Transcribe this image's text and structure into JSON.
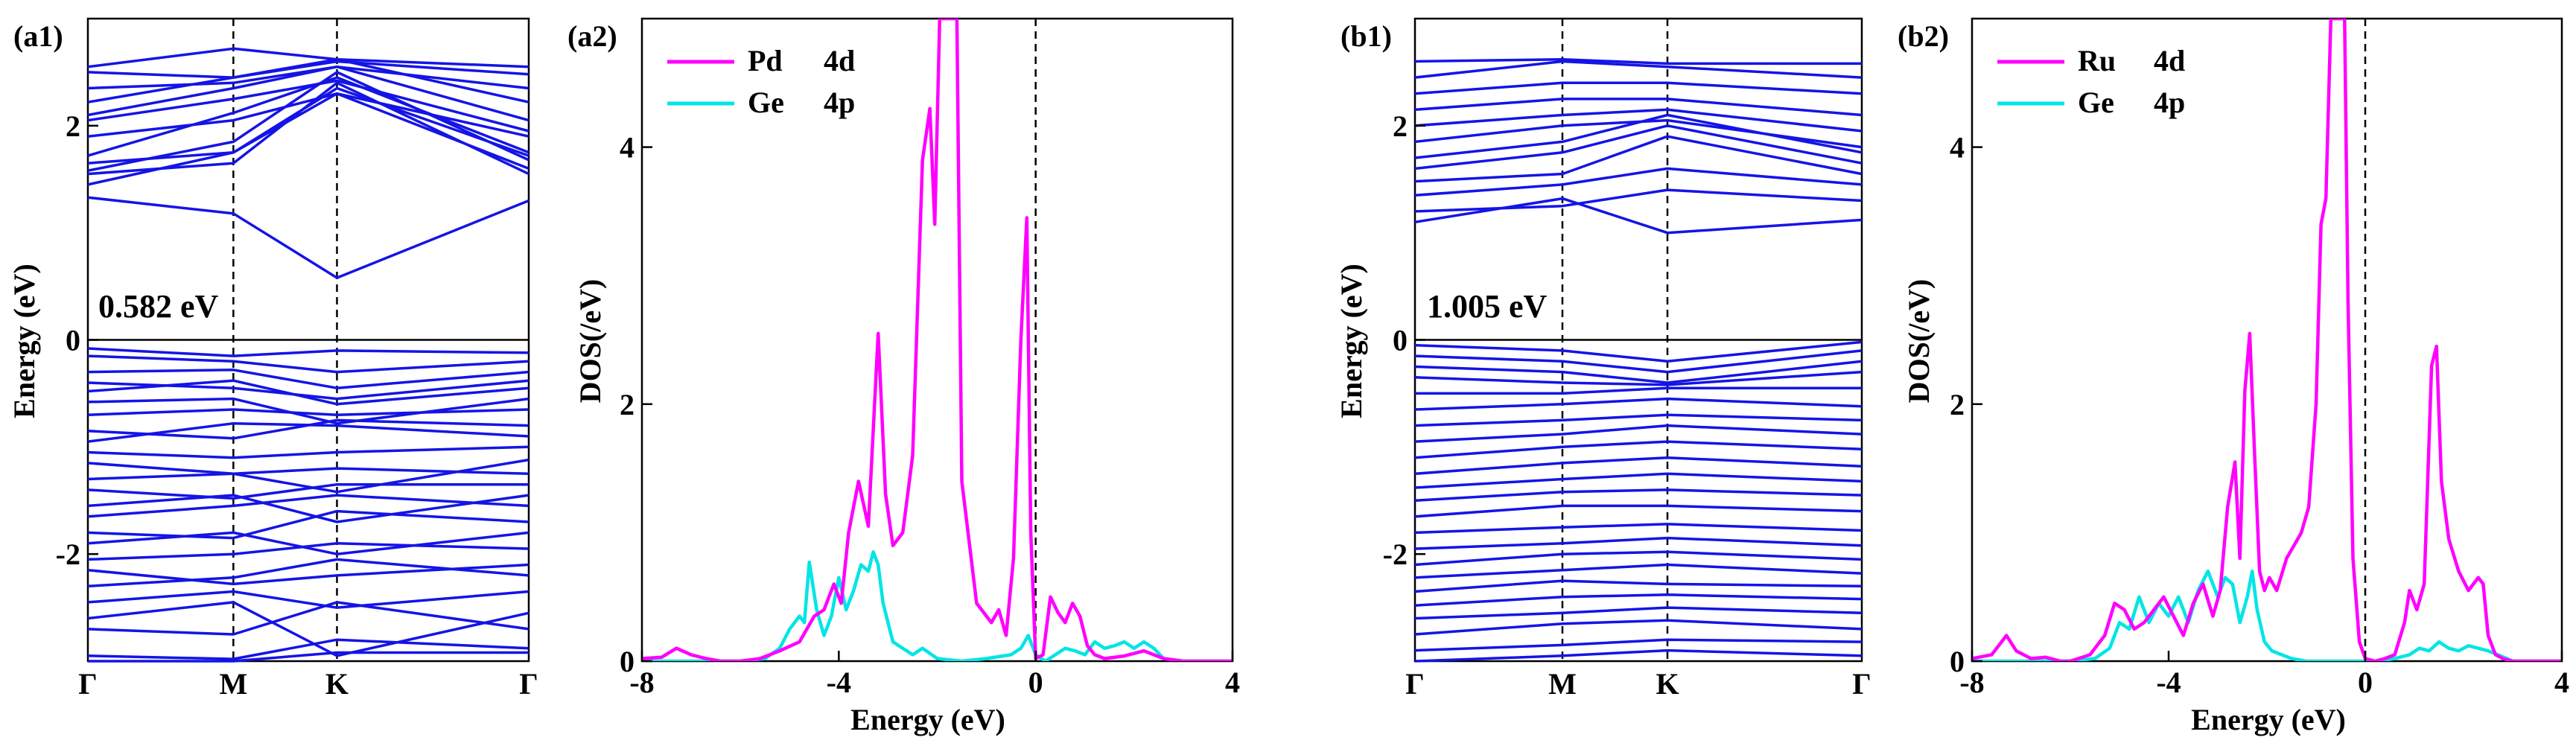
{
  "figure": {
    "panels": {
      "a1": {
        "label": "(a1)",
        "gap_label": "0.582 eV",
        "ylabel": "Energy (eV)"
      },
      "a2": {
        "label": "(a2)",
        "ylabel": "DOS(/eV)",
        "xlabel": "Energy (eV)"
      },
      "b1": {
        "label": "(b1)",
        "gap_label": "1.005 eV",
        "ylabel": "Energy (eV)"
      },
      "b2": {
        "label": "(b2)",
        "ylabel": "DOS(/eV)",
        "xlabel": "Energy (eV)"
      }
    },
    "colors": {
      "bands": "#1414e6",
      "d_orbital": "#ff00ff",
      "p_orbital": "#00e5e5"
    }
  },
  "chart_data": [
    {
      "id": "a1",
      "type": "line",
      "title": "(a1)",
      "xlabel": "",
      "ylabel": "Energy (eV)",
      "x_ticks": [
        "Γ",
        "M",
        "K",
        "Γ"
      ],
      "y_ticks": [
        -2,
        0,
        2
      ],
      "ylim": [
        -3.0,
        3.0
      ],
      "band_gap": "0.582 eV",
      "conduction_band_min": 0.58,
      "bands": [
        [
          -3.0,
          -3.0,
          -2.92,
          -2.92
        ],
        [
          -2.95,
          -2.98,
          -2.8,
          -2.88
        ],
        [
          -2.7,
          -2.75,
          -2.45,
          -2.7
        ],
        [
          -2.6,
          -2.45,
          -2.95,
          -2.55
        ],
        [
          -2.45,
          -2.35,
          -2.5,
          -2.35
        ],
        [
          -2.3,
          -2.22,
          -2.05,
          -2.2
        ],
        [
          -2.15,
          -2.28,
          -2.2,
          -2.1
        ],
        [
          -2.05,
          -2.0,
          -1.9,
          -1.95
        ],
        [
          -1.9,
          -1.8,
          -2.0,
          -1.8
        ],
        [
          -1.8,
          -1.85,
          -1.6,
          -1.7
        ],
        [
          -1.65,
          -1.55,
          -1.45,
          -1.55
        ],
        [
          -1.55,
          -1.45,
          -1.7,
          -1.45
        ],
        [
          -1.4,
          -1.48,
          -1.35,
          -1.35
        ],
        [
          -1.3,
          -1.25,
          -1.2,
          -1.25
        ],
        [
          -1.15,
          -1.25,
          -1.42,
          -1.12
        ],
        [
          -1.05,
          -1.1,
          -1.05,
          -1.0
        ],
        [
          -0.95,
          -0.78,
          -0.8,
          -0.9
        ],
        [
          -0.85,
          -0.92,
          -0.75,
          -0.8
        ],
        [
          -0.7,
          -0.65,
          -0.7,
          -0.65
        ],
        [
          -0.58,
          -0.55,
          -0.78,
          -0.55
        ],
        [
          -0.48,
          -0.38,
          -0.6,
          -0.45
        ],
        [
          -0.4,
          -0.45,
          -0.55,
          -0.38
        ],
        [
          -0.3,
          -0.28,
          -0.45,
          -0.3
        ],
        [
          -0.15,
          -0.2,
          -0.3,
          -0.2
        ],
        [
          -0.08,
          -0.15,
          -0.1,
          -0.12
        ],
        [
          1.33,
          1.18,
          0.58,
          1.3
        ],
        [
          1.45,
          1.75,
          2.3,
          1.6
        ],
        [
          1.55,
          1.65,
          2.4,
          1.55
        ],
        [
          1.58,
          1.85,
          2.5,
          1.68
        ],
        [
          1.65,
          1.75,
          2.35,
          1.72
        ],
        [
          1.72,
          2.12,
          2.45,
          1.75
        ],
        [
          1.9,
          2.05,
          2.3,
          1.9
        ],
        [
          2.05,
          2.25,
          2.42,
          1.95
        ],
        [
          2.1,
          2.35,
          2.55,
          2.05
        ],
        [
          2.22,
          2.45,
          2.62,
          2.22
        ],
        [
          2.35,
          2.4,
          2.55,
          2.35
        ],
        [
          2.5,
          2.45,
          2.6,
          2.48
        ],
        [
          2.55,
          2.72,
          2.62,
          2.55
        ]
      ]
    },
    {
      "id": "a2",
      "type": "line",
      "title": "(a2)",
      "xlabel": "Energy (eV)",
      "ylabel": "DOS(/eV)",
      "xlim": [
        -8,
        4
      ],
      "ylim": [
        0,
        5
      ],
      "x_ticks": [
        -8,
        -4,
        0,
        4
      ],
      "y_ticks": [
        0,
        2,
        4
      ],
      "legend_position": "top-left",
      "series": [
        {
          "name": "Pd 4d",
          "orbital": "Pd",
          "shell": "4d",
          "color": "#ff00ff",
          "x": [
            -8.0,
            -7.6,
            -7.3,
            -7.0,
            -6.7,
            -6.4,
            -6.0,
            -5.6,
            -5.2,
            -4.8,
            -4.5,
            -4.3,
            -4.1,
            -3.95,
            -3.8,
            -3.6,
            -3.4,
            -3.2,
            -3.05,
            -2.9,
            -2.7,
            -2.5,
            -2.3,
            -2.15,
            -2.05,
            -1.95,
            -1.85,
            -1.78,
            -1.7,
            -1.6,
            -1.5,
            -1.2,
            -0.9,
            -0.75,
            -0.6,
            -0.45,
            -0.3,
            -0.18,
            -0.1,
            0.0,
            0.15,
            0.3,
            0.45,
            0.6,
            0.75,
            0.9,
            1.05,
            1.2,
            1.4,
            1.8,
            2.2,
            2.6,
            3.0,
            4.0
          ],
          "y": [
            0.02,
            0.03,
            0.1,
            0.05,
            0.02,
            0.0,
            0.0,
            0.02,
            0.08,
            0.15,
            0.35,
            0.4,
            0.6,
            0.45,
            1.0,
            1.4,
            1.05,
            2.55,
            1.3,
            0.9,
            1.0,
            1.6,
            3.9,
            4.3,
            3.4,
            5.0,
            5.0,
            5.0,
            5.0,
            5.0,
            1.4,
            0.45,
            0.3,
            0.4,
            0.2,
            0.8,
            2.5,
            3.45,
            1.0,
            0.02,
            0.05,
            0.5,
            0.38,
            0.3,
            0.45,
            0.35,
            0.12,
            0.05,
            0.02,
            0.04,
            0.08,
            0.02,
            0.0,
            0.0
          ]
        },
        {
          "name": "Ge 4p",
          "orbital": "Ge",
          "shell": "4p",
          "color": "#00e5e5",
          "x": [
            -8.0,
            -7.0,
            -6.0,
            -5.5,
            -5.2,
            -5.0,
            -4.8,
            -4.7,
            -4.6,
            -4.45,
            -4.3,
            -4.15,
            -4.0,
            -3.85,
            -3.7,
            -3.55,
            -3.4,
            -3.3,
            -3.2,
            -3.1,
            -3.0,
            -2.9,
            -2.7,
            -2.5,
            -2.3,
            -2.0,
            -1.5,
            -1.0,
            -0.5,
            -0.3,
            -0.15,
            0.0,
            0.2,
            0.4,
            0.6,
            0.8,
            1.0,
            1.2,
            1.4,
            1.6,
            1.8,
            2.0,
            2.2,
            2.4,
            2.6,
            3.0,
            4.0
          ],
          "y": [
            0.0,
            0.0,
            0.0,
            0.02,
            0.1,
            0.25,
            0.35,
            0.3,
            0.77,
            0.4,
            0.2,
            0.35,
            0.65,
            0.4,
            0.55,
            0.75,
            0.7,
            0.85,
            0.75,
            0.45,
            0.3,
            0.15,
            0.1,
            0.05,
            0.1,
            0.02,
            0.0,
            0.02,
            0.05,
            0.1,
            0.2,
            0.05,
            0.0,
            0.05,
            0.1,
            0.08,
            0.05,
            0.15,
            0.1,
            0.12,
            0.15,
            0.1,
            0.15,
            0.1,
            0.02,
            0.0,
            0.0
          ]
        }
      ]
    },
    {
      "id": "b1",
      "type": "line",
      "title": "(b1)",
      "xlabel": "",
      "ylabel": "Energy (eV)",
      "x_ticks": [
        "Γ",
        "M",
        "K",
        "Γ"
      ],
      "y_ticks": [
        -2,
        0,
        2
      ],
      "ylim": [
        -3.0,
        3.0
      ],
      "band_gap": "1.005 eV",
      "conduction_band_min": 1.0,
      "bands": [
        [
          -3.0,
          -2.95,
          -2.9,
          -2.95
        ],
        [
          -2.9,
          -2.85,
          -2.8,
          -2.82
        ],
        [
          -2.75,
          -2.65,
          -2.62,
          -2.7
        ],
        [
          -2.6,
          -2.55,
          -2.5,
          -2.55
        ],
        [
          -2.48,
          -2.4,
          -2.38,
          -2.42
        ],
        [
          -2.35,
          -2.25,
          -2.28,
          -2.3
        ],
        [
          -2.22,
          -2.15,
          -2.1,
          -2.18
        ],
        [
          -2.1,
          -2.0,
          -1.98,
          -2.05
        ],
        [
          -1.95,
          -1.9,
          -1.85,
          -1.92
        ],
        [
          -1.8,
          -1.75,
          -1.72,
          -1.78
        ],
        [
          -1.65,
          -1.55,
          -1.55,
          -1.6
        ],
        [
          -1.5,
          -1.42,
          -1.4,
          -1.45
        ],
        [
          -1.38,
          -1.3,
          -1.25,
          -1.32
        ],
        [
          -1.25,
          -1.15,
          -1.1,
          -1.18
        ],
        [
          -1.1,
          -1.0,
          -0.95,
          -1.02
        ],
        [
          -0.95,
          -0.88,
          -0.8,
          -0.88
        ],
        [
          -0.8,
          -0.75,
          -0.7,
          -0.75
        ],
        [
          -0.65,
          -0.6,
          -0.55,
          -0.62
        ],
        [
          -0.5,
          -0.5,
          -0.45,
          -0.45
        ],
        [
          -0.35,
          -0.4,
          -0.42,
          -0.3
        ],
        [
          -0.25,
          -0.3,
          -0.4,
          -0.2
        ],
        [
          -0.15,
          -0.2,
          -0.3,
          -0.1
        ],
        [
          -0.05,
          -0.1,
          -0.2,
          -0.02
        ],
        [
          1.1,
          1.32,
          1.0,
          1.12
        ],
        [
          1.2,
          1.25,
          1.4,
          1.3
        ],
        [
          1.35,
          1.45,
          1.6,
          1.45
        ],
        [
          1.48,
          1.55,
          1.9,
          1.55
        ],
        [
          1.6,
          1.75,
          2.0,
          1.65
        ],
        [
          1.7,
          1.85,
          2.1,
          1.75
        ],
        [
          1.85,
          2.0,
          2.05,
          1.8
        ],
        [
          2.0,
          2.1,
          2.15,
          1.95
        ],
        [
          2.15,
          2.25,
          2.25,
          2.1
        ],
        [
          2.3,
          2.4,
          2.4,
          2.3
        ],
        [
          2.45,
          2.6,
          2.55,
          2.45
        ],
        [
          2.6,
          2.62,
          2.58,
          2.58
        ]
      ]
    },
    {
      "id": "b2",
      "type": "line",
      "title": "(b2)",
      "xlabel": "Energy (eV)",
      "ylabel": "DOS(/eV)",
      "xlim": [
        -8,
        4
      ],
      "ylim": [
        0,
        5
      ],
      "x_ticks": [
        -8,
        -4,
        0,
        4
      ],
      "y_ticks": [
        0,
        2,
        4
      ],
      "legend_position": "top-left",
      "series": [
        {
          "name": "Ru 4d",
          "orbital": "Ru",
          "shell": "4d",
          "color": "#ff00ff",
          "x": [
            -8.0,
            -7.6,
            -7.3,
            -7.1,
            -6.8,
            -6.5,
            -6.2,
            -6.0,
            -5.6,
            -5.3,
            -5.1,
            -4.9,
            -4.7,
            -4.5,
            -4.3,
            -4.1,
            -3.9,
            -3.7,
            -3.5,
            -3.3,
            -3.1,
            -2.95,
            -2.8,
            -2.65,
            -2.55,
            -2.45,
            -2.35,
            -2.25,
            -2.15,
            -2.05,
            -1.95,
            -1.8,
            -1.6,
            -1.45,
            -1.3,
            -1.15,
            -1.0,
            -0.9,
            -0.8,
            -0.7,
            -0.6,
            -0.5,
            -0.42,
            -0.35,
            -0.25,
            -0.12,
            0.0,
            0.2,
            0.4,
            0.6,
            0.8,
            0.9,
            1.05,
            1.2,
            1.35,
            1.45,
            1.55,
            1.7,
            1.9,
            2.1,
            2.3,
            2.4,
            2.5,
            2.65,
            2.8,
            3.0,
            4.0
          ],
          "y": [
            0.02,
            0.05,
            0.2,
            0.08,
            0.02,
            0.03,
            0.0,
            0.0,
            0.05,
            0.2,
            0.45,
            0.4,
            0.25,
            0.3,
            0.4,
            0.5,
            0.35,
            0.2,
            0.45,
            0.6,
            0.35,
            0.55,
            1.2,
            1.55,
            0.8,
            2.1,
            2.55,
            1.6,
            0.7,
            0.55,
            0.65,
            0.55,
            0.8,
            0.9,
            1.0,
            1.2,
            2.0,
            3.4,
            3.6,
            5.0,
            5.0,
            5.0,
            5.0,
            2.8,
            0.8,
            0.15,
            0.02,
            0.0,
            0.02,
            0.05,
            0.3,
            0.55,
            0.4,
            0.6,
            2.3,
            2.45,
            1.4,
            0.95,
            0.7,
            0.55,
            0.65,
            0.6,
            0.2,
            0.05,
            0.02,
            0.0,
            0.0
          ]
        },
        {
          "name": "Ge 4p",
          "orbital": "Ge",
          "shell": "4p",
          "color": "#00e5e5",
          "x": [
            -8.0,
            -7.0,
            -6.0,
            -5.5,
            -5.2,
            -5.0,
            -4.8,
            -4.6,
            -4.4,
            -4.2,
            -4.0,
            -3.8,
            -3.6,
            -3.4,
            -3.2,
            -3.0,
            -2.85,
            -2.7,
            -2.55,
            -2.4,
            -2.3,
            -2.2,
            -2.05,
            -1.9,
            -1.7,
            -1.5,
            -1.2,
            -0.8,
            -0.4,
            0.0,
            0.3,
            0.6,
            0.9,
            1.1,
            1.3,
            1.5,
            1.7,
            1.9,
            2.1,
            2.3,
            2.5,
            2.7,
            3.0,
            4.0
          ],
          "y": [
            0.0,
            0.0,
            0.0,
            0.02,
            0.1,
            0.3,
            0.25,
            0.5,
            0.3,
            0.45,
            0.35,
            0.5,
            0.3,
            0.55,
            0.7,
            0.5,
            0.65,
            0.6,
            0.3,
            0.5,
            0.7,
            0.4,
            0.15,
            0.08,
            0.05,
            0.02,
            0.0,
            0.0,
            0.0,
            0.0,
            0.0,
            0.02,
            0.05,
            0.1,
            0.08,
            0.15,
            0.1,
            0.08,
            0.12,
            0.1,
            0.08,
            0.05,
            0.0,
            0.0
          ]
        }
      ]
    }
  ]
}
